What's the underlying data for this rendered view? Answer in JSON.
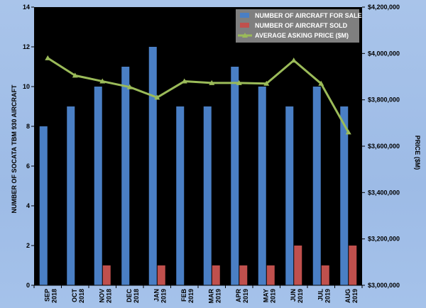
{
  "chart_data": {
    "type": "bar+line",
    "categories": [
      [
        "SEP",
        "2018"
      ],
      [
        "OCT",
        "2018"
      ],
      [
        "NOV",
        "2018"
      ],
      [
        "DEC",
        "2018"
      ],
      [
        "JAN",
        "2019"
      ],
      [
        "FEB",
        "2019"
      ],
      [
        "MAR",
        "2019"
      ],
      [
        "APR",
        "2019"
      ],
      [
        "MAY",
        "2019"
      ],
      [
        "JUN",
        "2019"
      ],
      [
        "JUL",
        "2019"
      ],
      [
        "AUG",
        "2019"
      ]
    ],
    "series": [
      {
        "name": "NUMBER OF AIRCRAFT FOR SALE",
        "type": "bar",
        "axis": "left",
        "color": "#4a7fc5",
        "values": [
          8,
          9,
          10,
          11,
          12,
          9,
          9,
          11,
          10,
          9,
          10,
          9
        ]
      },
      {
        "name": "NUMBER OF AIRCRAFT SOLD",
        "type": "bar",
        "axis": "left",
        "color": "#c0504d",
        "values": [
          0,
          0,
          1,
          0,
          1,
          0,
          1,
          1,
          1,
          2,
          1,
          2
        ]
      },
      {
        "name": "AVERAGE ASKING PRICE ($M)",
        "type": "line",
        "axis": "right",
        "color": "#9bbb59",
        "values": [
          3980000,
          3905000,
          3880000,
          3855000,
          3810000,
          3880000,
          3873000,
          3873000,
          3870000,
          3970000,
          3870000,
          3660000
        ]
      }
    ],
    "ylabel": "NUMBER OF SOCATA TBM 930 AIRCRAFT",
    "y2label": "PRICE ($M)",
    "ylim": [
      0,
      14
    ],
    "yticks": [
      0,
      2,
      4,
      6,
      8,
      10,
      12,
      14
    ],
    "y2lim": [
      3000000,
      4200000
    ],
    "y2ticks": [
      "$3,000,000",
      "$3,200,000",
      "$3,400,000",
      "$3,600,000",
      "$3,800,000",
      "$4,000,000",
      "$4,200,000"
    ],
    "y2tick_values": [
      3000000,
      3200000,
      3400000,
      3600000,
      3800000,
      4000000,
      4200000
    ],
    "legend": "top-right",
    "grid": false,
    "plot_background": "#000000"
  }
}
